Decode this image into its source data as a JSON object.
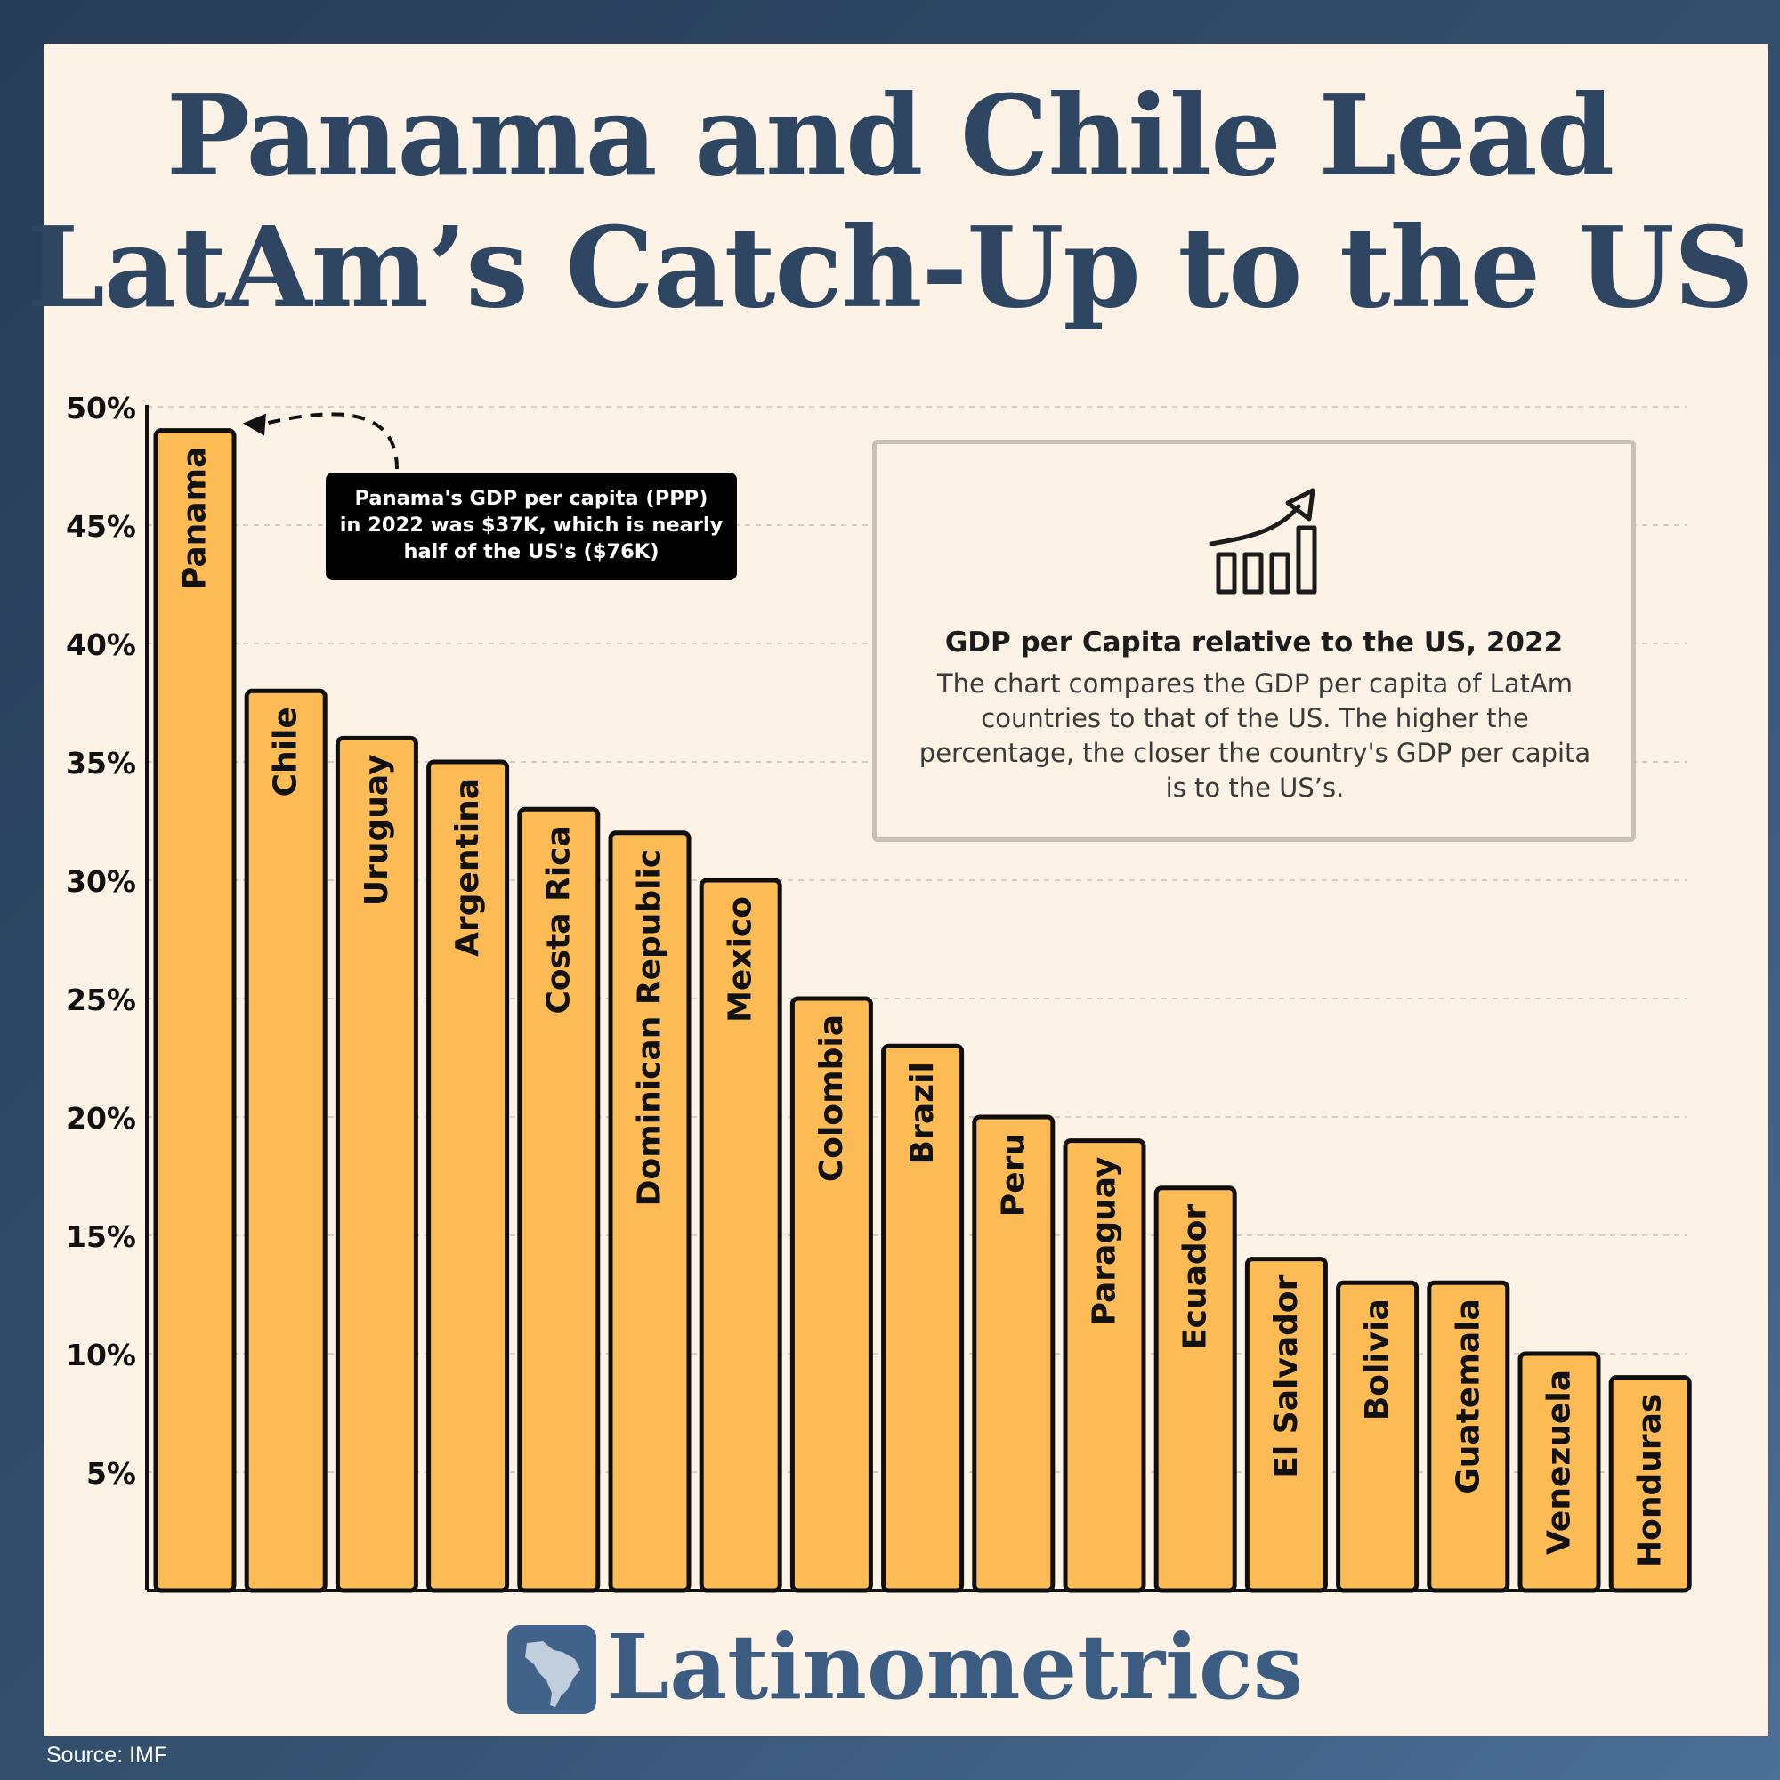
{
  "title_lines": [
    "Panama and Chile Lead",
    "LatAm’s Catch-Up to the US"
  ],
  "colors": {
    "bar_fill": "#fdbb55",
    "bar_stroke": "#0e0e0e",
    "title": "#2f4663",
    "brand": "#3c5c82",
    "background": "#fdf2e6"
  },
  "info": {
    "icon": "bar-chart-growth-icon",
    "heading": "GDP per Capita relative to the US, 2022",
    "description": "The chart compares the GDP per capita of LatAm countries to that of the US. The higher the percentage, the closer the country's GDP per capita is to the US’s."
  },
  "annotation": {
    "lines": [
      "Panama's GDP per capita (PPP)",
      "in 2022 was $37K, which is nearly",
      "half of the US's ($76K)"
    ],
    "target": "Panama"
  },
  "brand": {
    "name": "Latinometrics",
    "logo_icon": "latin-america-map-icon"
  },
  "source": "Source: IMF",
  "chart_data": {
    "type": "bar",
    "title": "GDP per Capita relative to the US, 2022",
    "xlabel": "",
    "ylabel": "",
    "categories": [
      "Panama",
      "Chile",
      "Uruguay",
      "Argentina",
      "Costa Rica",
      "Dominican Republic",
      "Mexico",
      "Colombia",
      "Brazil",
      "Peru",
      "Paraguay",
      "Ecuador",
      "El Salvador",
      "Bolivia",
      "Guatemala",
      "Venezuela",
      "Honduras"
    ],
    "values": [
      49,
      38,
      36,
      35,
      33,
      32,
      30,
      25,
      23,
      20,
      19,
      17,
      14,
      13,
      13,
      10,
      9
    ],
    "ylim": [
      0,
      50
    ],
    "yticks": [
      5,
      10,
      15,
      20,
      25,
      30,
      35,
      40,
      45,
      50
    ],
    "ytick_labels": [
      "5%",
      "10%",
      "15%",
      "20%",
      "25%",
      "30%",
      "35%",
      "40%",
      "45%",
      "50%"
    ],
    "grid": true,
    "labels_inside_bars": true
  }
}
